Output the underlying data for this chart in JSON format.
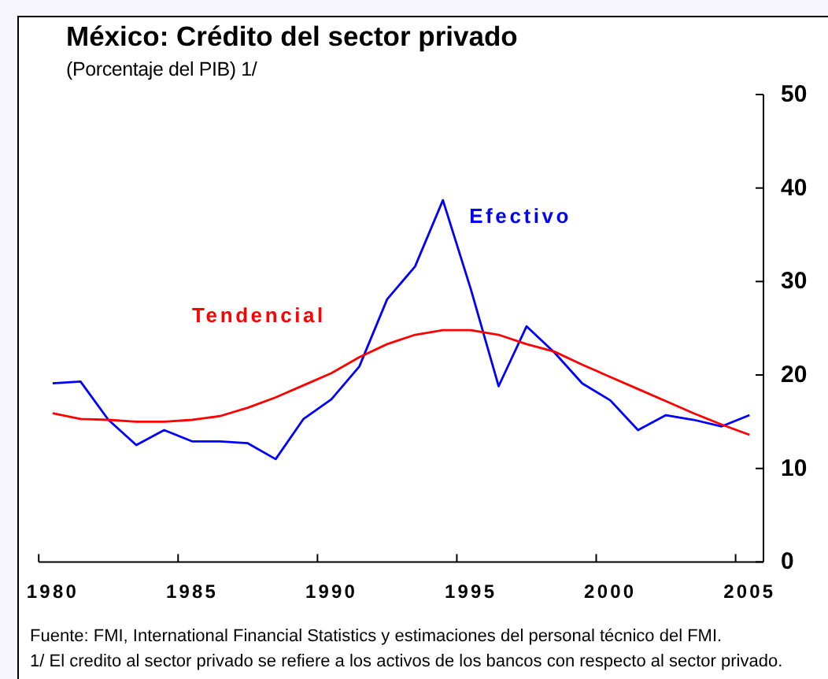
{
  "chart_data": {
    "type": "line",
    "title": "México: Crédito del sector privado",
    "subtitle": "(Porcentaje del PIB) 1/",
    "x": [
      1980,
      1981,
      1982,
      1983,
      1984,
      1985,
      1986,
      1987,
      1988,
      1989,
      1990,
      1991,
      1992,
      1993,
      1994,
      1995,
      1996,
      1997,
      1998,
      1999,
      2000,
      2001,
      2002,
      2003,
      2004,
      2005
    ],
    "series": [
      {
        "name": "Efectivo",
        "color": "#0000ff",
        "values": [
          19.1,
          19.3,
          15.2,
          12.5,
          14.1,
          12.9,
          12.9,
          12.7,
          11.0,
          15.3,
          17.4,
          20.9,
          28.1,
          31.6,
          38.7,
          29.2,
          18.8,
          25.2,
          22.4,
          19.1,
          17.3,
          14.1,
          15.7,
          15.2,
          14.5,
          15.7
        ]
      },
      {
        "name": "Tendencial",
        "color": "#ff0000",
        "values": [
          15.9,
          15.3,
          15.2,
          15.0,
          15.0,
          15.2,
          15.6,
          16.5,
          17.6,
          18.9,
          20.2,
          21.9,
          23.3,
          24.3,
          24.8,
          24.8,
          24.3,
          23.3,
          22.5,
          21.1,
          19.8,
          18.5,
          17.2,
          15.9,
          14.7,
          13.6
        ]
      }
    ],
    "xlim": [
      1979.5,
      2005.5
    ],
    "xticks": [
      {
        "value": 1979.5,
        "label": null
      },
      1980,
      {
        "value": 1984.5,
        "label": null
      },
      1985,
      {
        "value": 1989.5,
        "label": null
      },
      1990,
      {
        "value": 1994.5,
        "label": null
      },
      1995,
      {
        "value": 1999.5,
        "label": null
      },
      2000,
      {
        "value": 2004.5,
        "label": null
      },
      2005
    ],
    "ylim": [
      0,
      50
    ],
    "yticks": [
      0,
      10,
      20,
      30,
      40,
      50
    ],
    "grid": false,
    "marker": "none",
    "line_style": "solid",
    "annotations": [
      "Fuente: FMI, International Financial Statistics y estimaciones del personal técnico del FMI.",
      "1/ El credito al sector privado se refiere a los activos de los bancos con respecto al sector privado."
    ]
  }
}
